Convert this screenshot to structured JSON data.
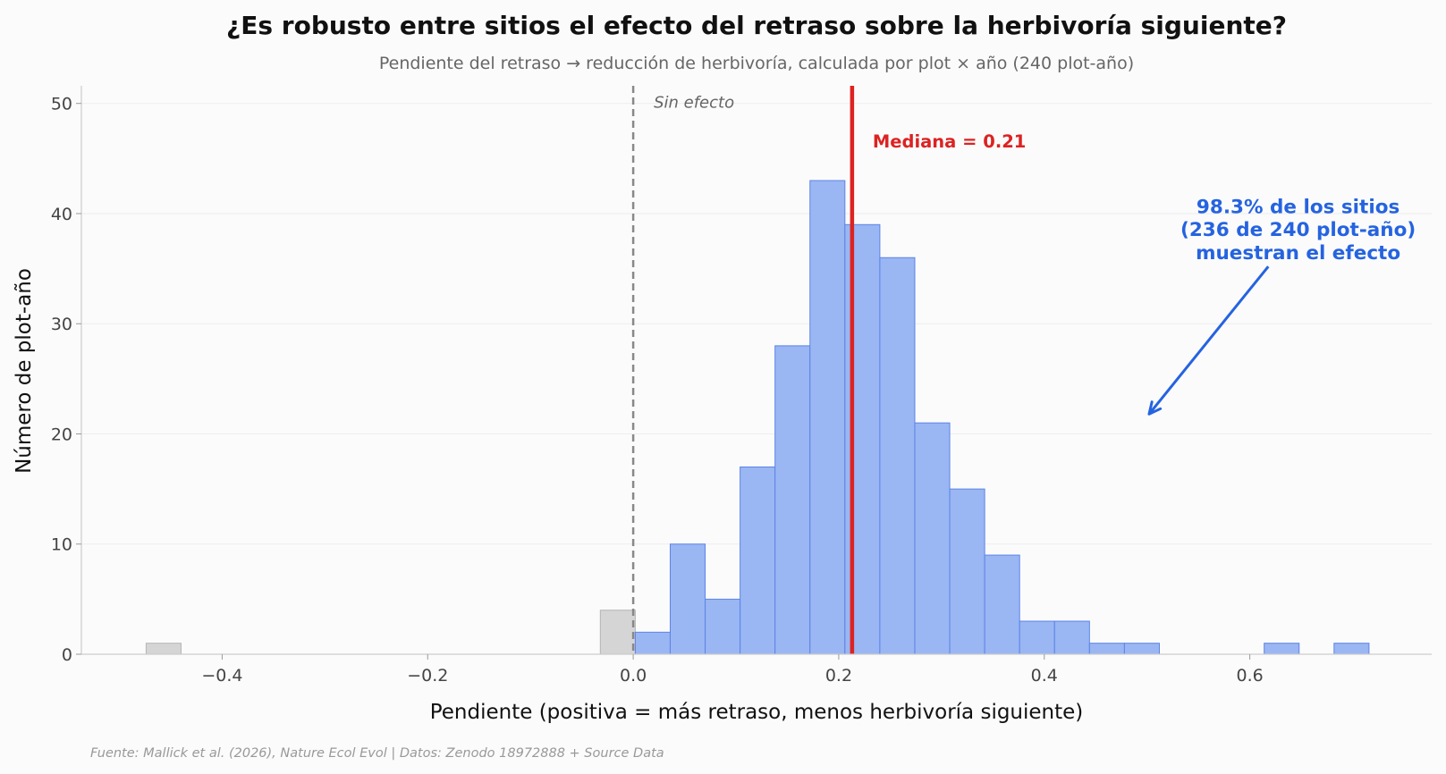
{
  "chart_data": {
    "type": "bar",
    "title": "¿Es robusto entre sitios el efecto del retraso sobre la herbivoría siguiente?",
    "subtitle": "Pendiente del retraso → reducción de herbivoría, calculada por plot × año (240 plot-año)",
    "xlabel": "Pendiente (positiva = más retraso, menos herbivoría siguiente)",
    "ylabel": "Número de plot-año",
    "source": "Fuente: Mallick et al. (2026), Nature Ecol Evol | Datos: Zenodo 18972888 + Source Data",
    "xlim": [
      -0.537,
      0.777
    ],
    "ylim": [
      0,
      51.6
    ],
    "x_ticks": [
      -0.4,
      -0.2,
      0.0,
      0.2,
      0.4,
      0.6
    ],
    "x_tick_labels": [
      "−0.4",
      "−0.2",
      "0.0",
      "0.2",
      "0.4",
      "0.6"
    ],
    "y_ticks": [
      0,
      10,
      20,
      30,
      40,
      50
    ],
    "y_tick_labels": [
      "0",
      "10",
      "20",
      "30",
      "40",
      "50"
    ],
    "grid": "horizontal",
    "series": [
      {
        "color": "#d5d5d5",
        "edge": "#b5b5b5",
        "bins": [
          {
            "x0": -0.474,
            "x1": -0.44,
            "count": 1
          },
          {
            "x0": -0.032,
            "x1": 0.002,
            "count": 4
          }
        ]
      },
      {
        "color": "#9ab6f3",
        "edge": "#5c84e6",
        "bins": [
          {
            "x0": 0.002,
            "x1": 0.036,
            "count": 2
          },
          {
            "x0": 0.036,
            "x1": 0.07,
            "count": 10
          },
          {
            "x0": 0.07,
            "x1": 0.104,
            "count": 5
          },
          {
            "x0": 0.104,
            "x1": 0.138,
            "count": 17
          },
          {
            "x0": 0.138,
            "x1": 0.172,
            "count": 28
          },
          {
            "x0": 0.172,
            "x1": 0.206,
            "count": 43
          },
          {
            "x0": 0.206,
            "x1": 0.24,
            "count": 39
          },
          {
            "x0": 0.24,
            "x1": 0.274,
            "count": 36
          },
          {
            "x0": 0.274,
            "x1": 0.308,
            "count": 21
          },
          {
            "x0": 0.308,
            "x1": 0.342,
            "count": 15
          },
          {
            "x0": 0.342,
            "x1": 0.376,
            "count": 9
          },
          {
            "x0": 0.376,
            "x1": 0.41,
            "count": 3
          },
          {
            "x0": 0.41,
            "x1": 0.444,
            "count": 3
          },
          {
            "x0": 0.444,
            "x1": 0.478,
            "count": 1
          },
          {
            "x0": 0.478,
            "x1": 0.512,
            "count": 1
          },
          {
            "x0": 0.614,
            "x1": 0.648,
            "count": 1
          },
          {
            "x0": 0.682,
            "x1": 0.716,
            "count": 1
          }
        ]
      }
    ],
    "reference_lines": {
      "zero": {
        "x": 0,
        "label": "Sin efecto",
        "color": "#888888"
      },
      "median": {
        "x": 0.213,
        "label": "Mediana = 0.21",
        "color": "#dd2222"
      }
    },
    "annotation": {
      "lines": [
        "98.3% de los sitios",
        "(236 de 240 plot-año)",
        "muestran el efecto"
      ],
      "color": "#2563e0",
      "arrow_from": [
        0.618,
        35.2
      ],
      "arrow_to": [
        0.502,
        21.8
      ]
    },
    "colors": {
      "positive": "#9ab6f3",
      "nonpositive": "#d5d5d5",
      "median": "#dd2222",
      "annotation": "#2563e0",
      "axis": "#cccccc",
      "grid": "#eeeeee"
    }
  }
}
